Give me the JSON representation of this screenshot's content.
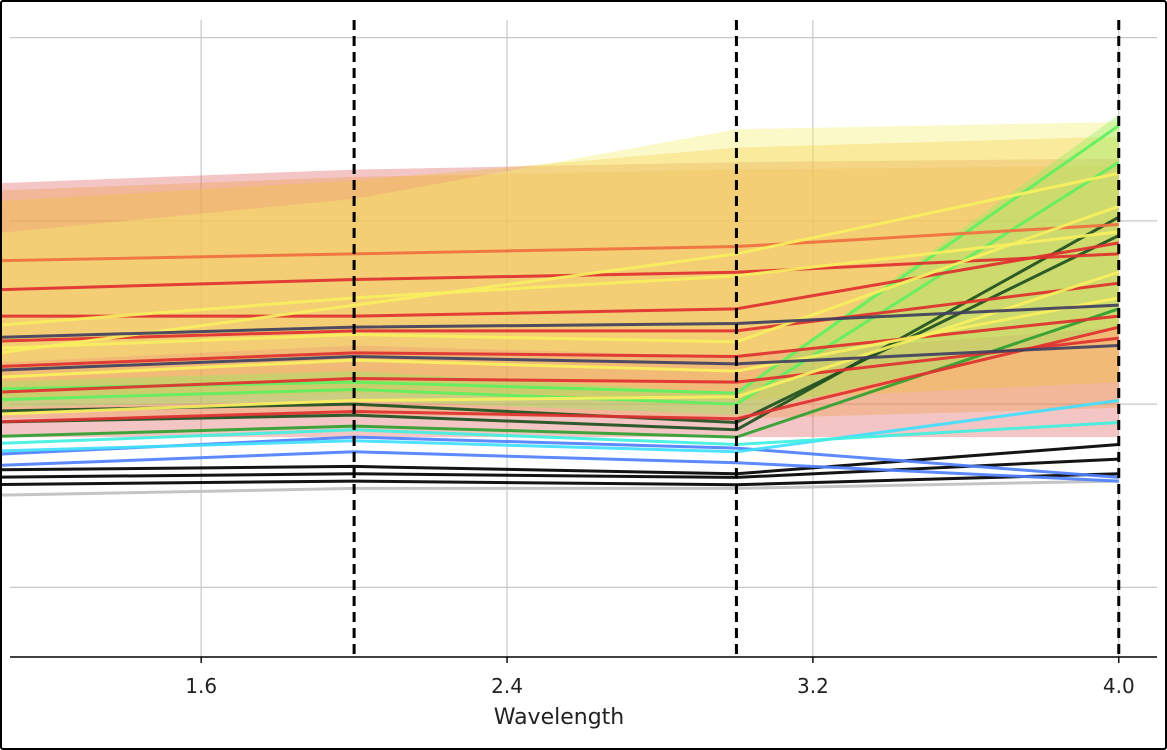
{
  "chart_data": {
    "type": "line",
    "title": "",
    "xlabel": "Wavelength",
    "ylabel": "",
    "xlim": [
      1.1,
      4.1
    ],
    "ylim": [
      0,
      17.6
    ],
    "x_ticks": [
      {
        "value": 1.6,
        "label": "1.6"
      },
      {
        "value": 2.4,
        "label": "2.4"
      },
      {
        "value": 3.2,
        "label": "3.2"
      },
      {
        "value": 4.0,
        "label": "4.0"
      }
    ],
    "y_gridlines": [
      1.9,
      6.9,
      11.9,
      16.9
    ],
    "grid": true,
    "legend": "none",
    "x": [
      1.0,
      2.0,
      3.0,
      4.0
    ],
    "vertical_dashed_lines": [
      1.0,
      2.0,
      3.0,
      4.0
    ],
    "bands": [
      {
        "color": "#e06666",
        "lower": [
          6.0,
          6.0,
          6.0,
          6.0
        ],
        "upper": [
          12.9,
          13.3,
          13.5,
          13.6
        ]
      },
      {
        "color": "#f0a050",
        "lower": [
          6.5,
          6.6,
          6.5,
          6.8
        ],
        "upper": [
          12.7,
          13.1,
          13.3,
          13.4
        ]
      },
      {
        "color": "#f2c040",
        "lower": [
          7.0,
          7.2,
          7.0,
          7.5
        ],
        "upper": [
          12.4,
          13.0,
          13.9,
          14.2
        ]
      },
      {
        "color": "#f8f070",
        "lower": [
          8.0,
          8.5,
          8.2,
          9.0
        ],
        "upper": [
          11.5,
          12.5,
          14.4,
          14.6
        ]
      },
      {
        "color": "#90f060",
        "lower": [
          6.8,
          7.0,
          6.6,
          9.0
        ],
        "upper": [
          7.5,
          7.8,
          7.2,
          14.8
        ]
      }
    ],
    "series": [
      {
        "color": "#c0c0c0",
        "values": [
          4.4,
          4.6,
          4.6,
          4.8
        ]
      },
      {
        "color": "#000000",
        "values": [
          4.7,
          4.8,
          4.7,
          5.0
        ]
      },
      {
        "color": "#000000",
        "values": [
          4.9,
          5.0,
          4.9,
          5.4
        ]
      },
      {
        "color": "#000000",
        "values": [
          5.1,
          5.2,
          5.0,
          5.8
        ]
      },
      {
        "color": "#5080ff",
        "values": [
          5.2,
          5.6,
          5.3,
          4.8
        ]
      },
      {
        "color": "#5080ff",
        "values": [
          5.5,
          6.0,
          5.7,
          4.9
        ]
      },
      {
        "color": "#40e0ff",
        "values": [
          5.6,
          5.9,
          5.6,
          7.0
        ]
      },
      {
        "color": "#40f0e0",
        "values": [
          5.8,
          6.2,
          5.8,
          6.4
        ]
      },
      {
        "color": "#30a030",
        "values": [
          6.0,
          6.3,
          6.0,
          9.5
        ]
      },
      {
        "color": "#205020",
        "values": [
          6.4,
          6.6,
          6.2,
          12.0
        ]
      },
      {
        "color": "#205020",
        "values": [
          6.7,
          6.9,
          6.4,
          11.5
        ]
      },
      {
        "color": "#60f060",
        "values": [
          7.0,
          7.3,
          6.9,
          13.5
        ]
      },
      {
        "color": "#60f060",
        "values": [
          7.3,
          7.5,
          7.2,
          14.5
        ]
      },
      {
        "color": "#e03030",
        "values": [
          6.4,
          6.7,
          6.5,
          9.0
        ]
      },
      {
        "color": "#e03030",
        "values": [
          7.2,
          7.6,
          7.5,
          8.7
        ]
      },
      {
        "color": "#e03030",
        "values": [
          7.9,
          8.3,
          8.2,
          9.3
        ]
      },
      {
        "color": "#e03030",
        "values": [
          8.6,
          8.9,
          8.9,
          10.2
        ]
      },
      {
        "color": "#e03030",
        "values": [
          9.3,
          9.3,
          9.5,
          11.3
        ]
      },
      {
        "color": "#e03030",
        "values": [
          10.0,
          10.3,
          10.5,
          11.0
        ]
      },
      {
        "color": "#f07040",
        "values": [
          10.8,
          11.0,
          11.2,
          11.8
        ]
      },
      {
        "color": "#f8f060",
        "values": [
          6.6,
          7.0,
          7.1,
          10.5
        ]
      },
      {
        "color": "#f8f060",
        "values": [
          7.6,
          8.1,
          7.8,
          9.8
        ]
      },
      {
        "color": "#f8f060",
        "values": [
          8.4,
          8.8,
          8.6,
          12.3
        ]
      },
      {
        "color": "#f8f060",
        "values": [
          9.0,
          9.8,
          10.4,
          11.6
        ]
      },
      {
        "color": "#f8f060",
        "values": [
          8.2,
          9.6,
          11.0,
          13.2
        ]
      },
      {
        "color": "#404060",
        "values": [
          7.8,
          8.2,
          8.0,
          8.5
        ]
      },
      {
        "color": "#404060",
        "values": [
          8.7,
          9.0,
          9.1,
          9.6
        ]
      }
    ]
  }
}
